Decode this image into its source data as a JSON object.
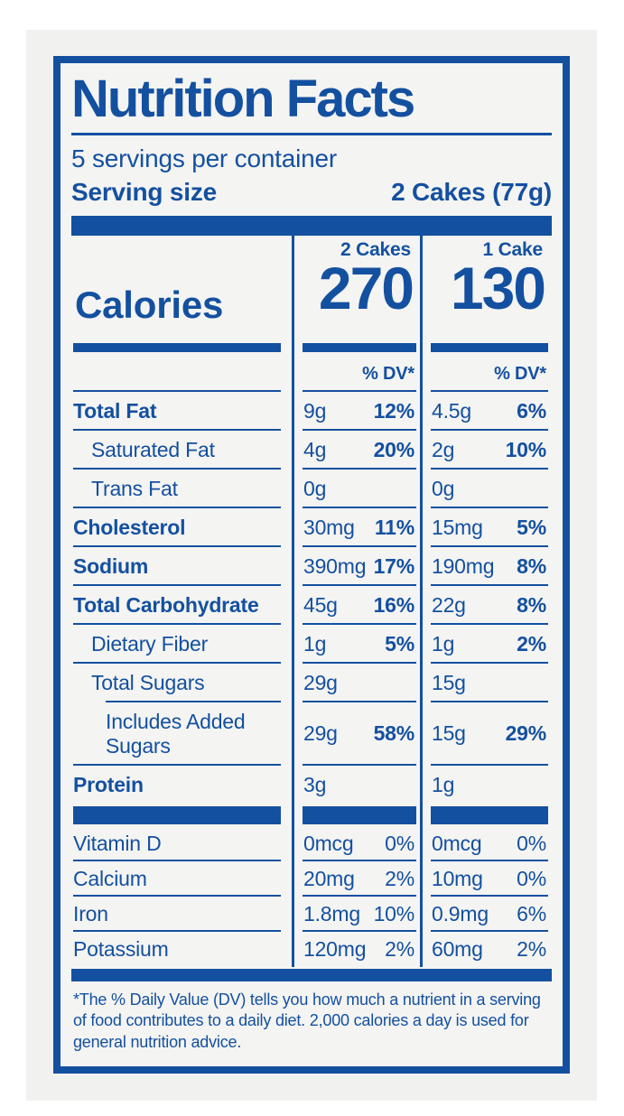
{
  "colors": {
    "blue": "#1450a0",
    "panel_bg": "#f1f2f0",
    "label_bg": "#f4f4f2"
  },
  "label": {
    "title": "Nutrition Facts",
    "servings_per_container": "5 servings per container",
    "serving_size": {
      "label": "Serving size",
      "value": "2 Cakes (77g)"
    },
    "calories": {
      "label": "Calories",
      "col1_header": "2 Cakes",
      "col1_value": "270",
      "col2_header": "1 Cake",
      "col2_value": "130"
    },
    "dv_header": "% DV*",
    "nutrients": [
      {
        "name": "Total Fat",
        "col1": {
          "amount": "9g",
          "dv": "12%"
        },
        "col2": {
          "amount": "4.5g",
          "dv": "6%"
        }
      },
      {
        "name": "Saturated Fat",
        "col1": {
          "amount": "4g",
          "dv": "20%"
        },
        "col2": {
          "amount": "2g",
          "dv": "10%"
        }
      },
      {
        "name": "Trans Fat",
        "col1": {
          "amount": "0g",
          "dv": ""
        },
        "col2": {
          "amount": "0g",
          "dv": ""
        }
      },
      {
        "name": "Cholesterol",
        "col1": {
          "amount": "30mg",
          "dv": "11%"
        },
        "col2": {
          "amount": "15mg",
          "dv": "5%"
        }
      },
      {
        "name": "Sodium",
        "col1": {
          "amount": "390mg",
          "dv": "17%"
        },
        "col2": {
          "amount": "190mg",
          "dv": "8%"
        }
      },
      {
        "name": "Total Carbohydrate",
        "col1": {
          "amount": "45g",
          "dv": "16%"
        },
        "col2": {
          "amount": "22g",
          "dv": "8%"
        }
      },
      {
        "name": "Dietary Fiber",
        "col1": {
          "amount": "1g",
          "dv": "5%"
        },
        "col2": {
          "amount": "1g",
          "dv": "2%"
        }
      },
      {
        "name": "Total Sugars",
        "col1": {
          "amount": "29g",
          "dv": ""
        },
        "col2": {
          "amount": "15g",
          "dv": ""
        }
      },
      {
        "name": "Includes Added Sugars",
        "col1": {
          "amount": "29g",
          "dv": "58%"
        },
        "col2": {
          "amount": "15g",
          "dv": "29%"
        }
      },
      {
        "name": "Protein",
        "col1": {
          "amount": "3g",
          "dv": ""
        },
        "col2": {
          "amount": "1g",
          "dv": ""
        }
      }
    ],
    "vitamins": [
      {
        "name": "Vitamin D",
        "col1": {
          "amount": "0mcg",
          "dv": "0%"
        },
        "col2": {
          "amount": "0mcg",
          "dv": "0%"
        }
      },
      {
        "name": "Calcium",
        "col1": {
          "amount": "20mg",
          "dv": "2%"
        },
        "col2": {
          "amount": "10mg",
          "dv": "0%"
        }
      },
      {
        "name": "Iron",
        "col1": {
          "amount": "1.8mg",
          "dv": "10%"
        },
        "col2": {
          "amount": "0.9mg",
          "dv": "6%"
        }
      },
      {
        "name": "Potassium",
        "col1": {
          "amount": "120mg",
          "dv": "2%"
        },
        "col2": {
          "amount": "60mg",
          "dv": "2%"
        }
      }
    ],
    "footnote": "*The % Daily Value (DV) tells you how much a nutrient in a serving of food contributes to a daily diet. 2,000 calories a day is used for general nutrition advice."
  }
}
